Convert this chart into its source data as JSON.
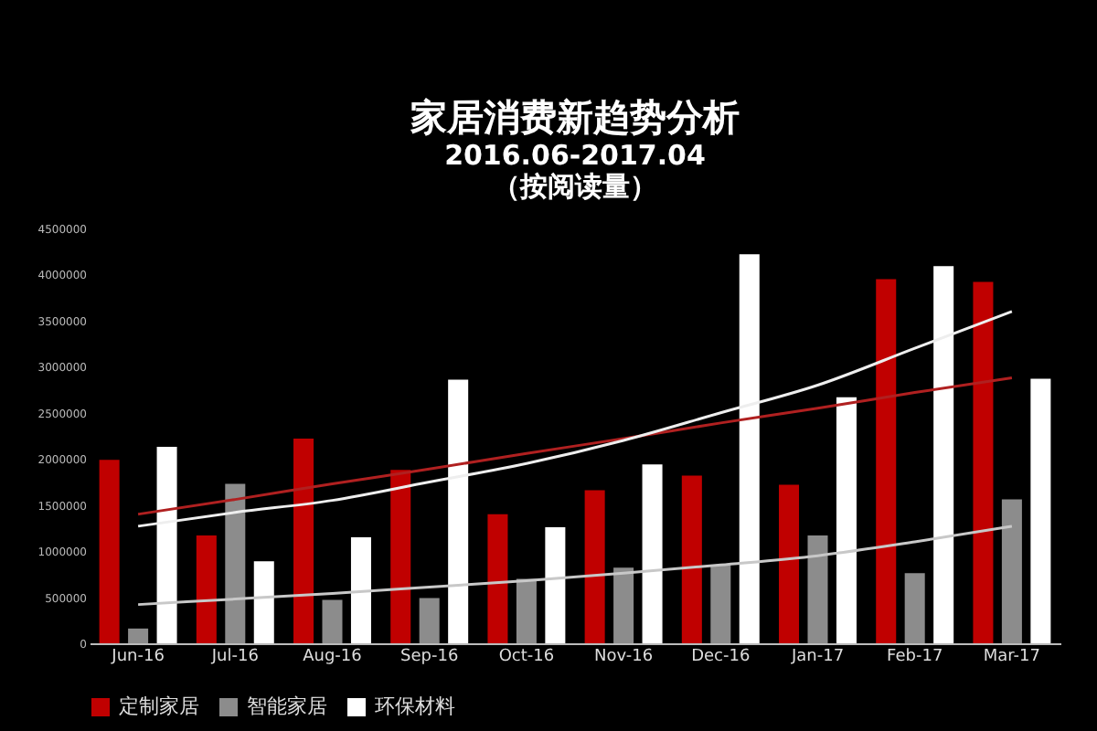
{
  "chart_data": {
    "type": "bar",
    "title": "家居消费新趋势分析",
    "subtitle": "2016.06-2017.04\n（按阅读量）",
    "categories": [
      "Jun-16",
      "Jul-16",
      "Aug-16",
      "Sep-16",
      "Oct-16",
      "Nov-16",
      "Dec-16",
      "Jan-17",
      "Feb-17",
      "Mar-17"
    ],
    "series": [
      {
        "name": "定制家居",
        "color": "#c00000",
        "values": [
          1990000,
          1170000,
          2220000,
          1880000,
          1400000,
          1660000,
          1820000,
          1720000,
          3950000,
          3920000
        ]
      },
      {
        "name": "智能家居",
        "color": "#8c8c8c",
        "values": [
          160000,
          1730000,
          470000,
          490000,
          700000,
          820000,
          850000,
          1170000,
          760000,
          1560000
        ]
      },
      {
        "name": "环保材料",
        "color": "#ffffff",
        "values": [
          2130000,
          890000,
          1150000,
          2860000,
          1260000,
          1940000,
          4220000,
          2670000,
          4090000,
          2870000
        ]
      },
      {
        "type": "line",
        "color": "#b02020",
        "x": [
          "Jun-16",
          "Jul-16",
          "Aug-16",
          "Sep-16",
          "Oct-16",
          "Nov-16",
          "Dec-16",
          "Jan-17",
          "Feb-17",
          "Mar-17"
        ],
        "values": [
          1400000,
          1560000,
          1730000,
          1890000,
          2060000,
          2220000,
          2390000,
          2550000,
          2720000,
          2880000
        ]
      },
      {
        "type": "line",
        "color": "#c8c8c8",
        "x": [
          "Jun-16",
          "Jul-16",
          "Aug-16",
          "Sep-16",
          "Oct-16",
          "Nov-16",
          "Dec-16",
          "Jan-17",
          "Feb-17",
          "Mar-17"
        ],
        "values": [
          420000,
          480000,
          540000,
          610000,
          680000,
          760000,
          850000,
          950000,
          1100000,
          1270000
        ]
      },
      {
        "type": "line",
        "color": "#eeeeee",
        "x": [
          "Jun-16",
          "Jul-16",
          "Aug-16",
          "Sep-16",
          "Oct-16",
          "Nov-16",
          "Dec-16",
          "Jan-17",
          "Feb-17",
          "Mar-17"
        ],
        "values": [
          1270000,
          1420000,
          1550000,
          1750000,
          1950000,
          2200000,
          2500000,
          2800000,
          3200000,
          3600000
        ]
      }
    ],
    "ylim": [
      0,
      4500000
    ],
    "yticks": [
      0,
      500000,
      1000000,
      1500000,
      2000000,
      2500000,
      3000000,
      3500000,
      4000000,
      4500000
    ],
    "grid": false,
    "legend": "bottom"
  }
}
